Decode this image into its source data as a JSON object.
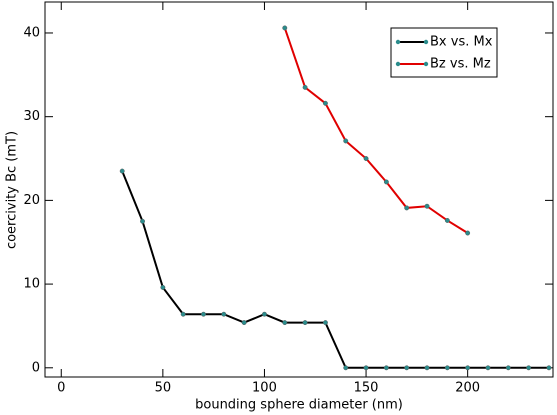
{
  "chart_data": {
    "type": "line",
    "xlabel": "bounding sphere diameter (nm)",
    "ylabel": "coercivity Bc (mT)",
    "xlim": [
      -8,
      242
    ],
    "ylim": [
      -1.1,
      43.7
    ],
    "xticks": [
      0,
      50,
      100,
      150,
      200
    ],
    "yticks": [
      0,
      10,
      20,
      30,
      40
    ],
    "legend": "upper right",
    "marker_color": "#2a8c8c",
    "series": [
      {
        "name": "Bx vs. Mx",
        "color": "#000000",
        "x": [
          30,
          40,
          50,
          60,
          70,
          80,
          90,
          100,
          110,
          120,
          130,
          140,
          150,
          160,
          170,
          180,
          190,
          200,
          210,
          220,
          230,
          240
        ],
        "values": [
          23.5,
          17.5,
          9.6,
          6.4,
          6.4,
          6.4,
          5.4,
          6.4,
          5.4,
          5.4,
          5.4,
          0,
          0,
          0,
          0,
          0,
          0,
          0,
          0,
          0,
          0,
          0
        ]
      },
      {
        "name": "Bz vs. Mz",
        "color": "#e00000",
        "x": [
          110,
          120,
          130,
          140,
          150,
          160,
          170,
          180,
          190,
          200
        ],
        "values": [
          40.6,
          33.5,
          31.6,
          27.1,
          25.0,
          22.2,
          19.1,
          19.3,
          17.6,
          16.1
        ]
      }
    ]
  }
}
